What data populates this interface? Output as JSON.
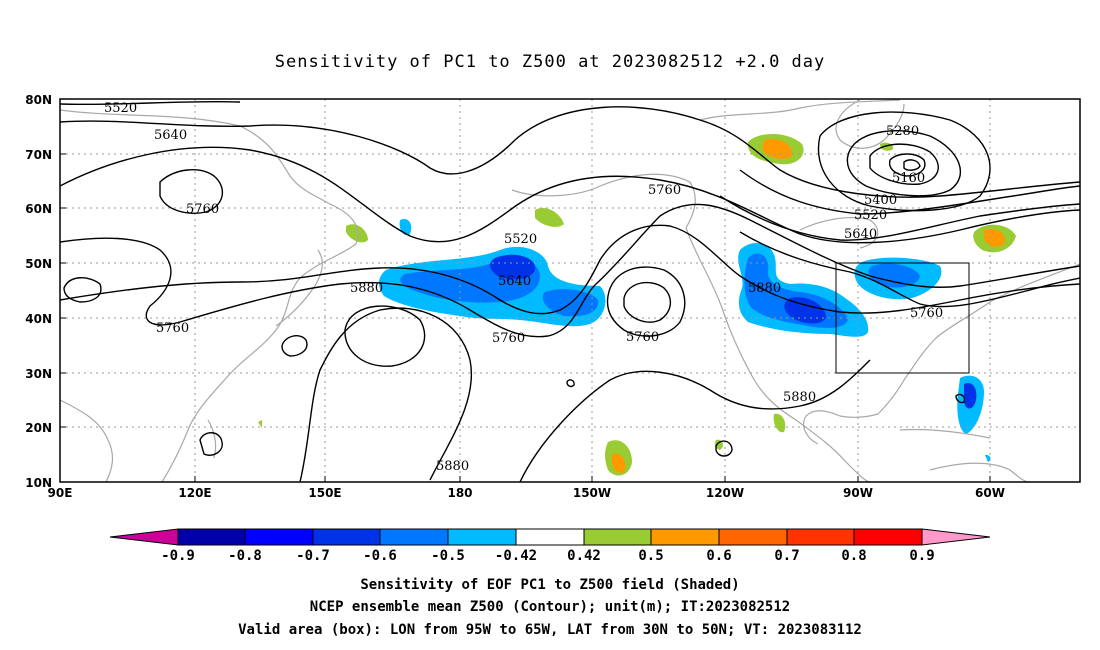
{
  "title": "Sensitivity of PC1 to Z500 at 2023082512 +2.0 day",
  "map": {
    "lat_labels": [
      "80N",
      "70N",
      "60N",
      "50N",
      "40N",
      "30N",
      "20N",
      "10N"
    ],
    "lon_labels": [
      "90E",
      "120E",
      "150E",
      "180",
      "150W",
      "120W",
      "90W",
      "60W"
    ],
    "contour_labels": [
      "5520",
      "5640",
      "5760",
      "5280",
      "5160",
      "5400",
      "5520",
      "5640",
      "5760",
      "5520",
      "5640",
      "5880",
      "5760",
      "5760",
      "5760",
      "5880",
      "5760",
      "5880",
      "5880"
    ],
    "valid_box": {
      "lon_min": -95,
      "lon_max": -65,
      "lat_min": 30,
      "lat_max": 50
    }
  },
  "colorbar": {
    "levels": [
      "-0.9",
      "-0.8",
      "-0.7",
      "-0.6",
      "-0.5",
      "-0.42",
      "0.42",
      "0.5",
      "0.6",
      "0.7",
      "0.8",
      "0.9"
    ],
    "colors": {
      "lt_m09": "#cc0099",
      "m09_m08": "#0000a8",
      "m08_m07": "#0000ff",
      "m07_m06": "#0033e8",
      "m06_m05": "#0077ff",
      "m05_m042": "#00bbff",
      "m042_042": "#ffffff",
      "p042_p05": "#99cc33",
      "p05_p06": "#ff9900",
      "p06_p07": "#ff6600",
      "p07_p08": "#ff3300",
      "p08_p09": "#ff0000",
      "gt_p09": "#ff99cc"
    }
  },
  "caption": {
    "line1": "Sensitivity of EOF PC1 to Z500 field (Shaded)",
    "line2": "NCEP ensemble mean Z500 (Contour); unit(m); IT:2023082512",
    "line3": "Valid area (box): LON from 95W to 65W, LAT from 30N to 50N; VT: 2023083112"
  }
}
